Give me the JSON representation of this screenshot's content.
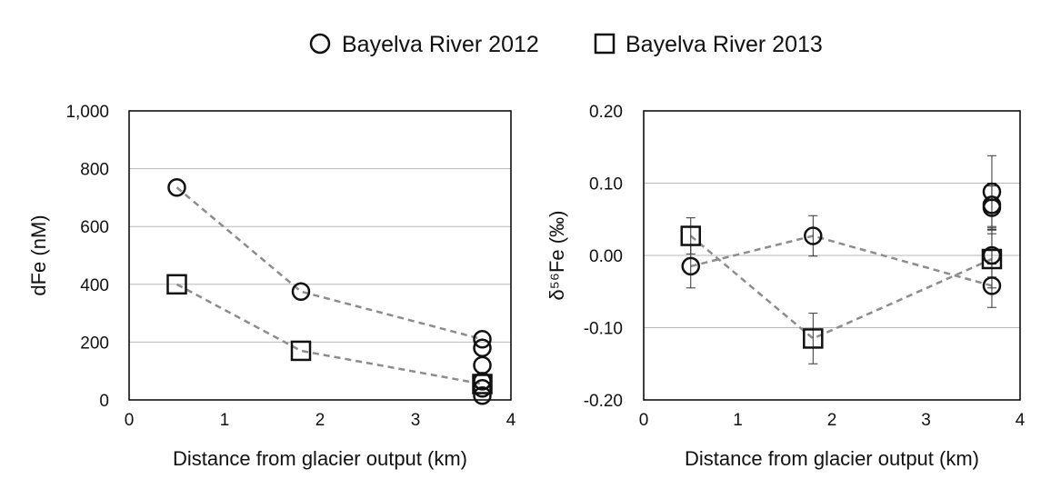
{
  "legend": {
    "entries": [
      {
        "label": "Bayelva River 2012",
        "marker": "circle"
      },
      {
        "label": "Bayelva River 2013",
        "marker": "square"
      }
    ],
    "placement": "top-center"
  },
  "colors": {
    "marker_stroke": "#111111",
    "connector": "#8c8c8c",
    "grid": "#b8b8b8",
    "frame": "#000000",
    "background": "#ffffff"
  },
  "chart_data": [
    {
      "type": "scatter",
      "xlabel": "Distance from glacier output (km)",
      "ylabel": "dFe (nM)",
      "xlim": [
        0,
        4
      ],
      "ylim": [
        0,
        1000
      ],
      "xticks": [
        0,
        1,
        2,
        3,
        4
      ],
      "xtick_labels": [
        "0",
        "1",
        "2",
        "3",
        "4"
      ],
      "yticks": [
        0,
        200,
        400,
        600,
        800,
        1000
      ],
      "ytick_labels": [
        "0",
        "200",
        "400",
        "600",
        "800",
        "1,000"
      ],
      "grid": "horizontal",
      "series": [
        {
          "name": "Bayelva River 2012",
          "marker": "circle",
          "points": [
            {
              "x": 0.5,
              "y": 735
            },
            {
              "x": 1.8,
              "y": 375
            },
            {
              "x": 3.7,
              "y": 210
            },
            {
              "x": 3.7,
              "y": 180
            },
            {
              "x": 3.7,
              "y": 120
            },
            {
              "x": 3.7,
              "y": 65
            },
            {
              "x": 3.7,
              "y": 40
            },
            {
              "x": 3.7,
              "y": 15
            }
          ],
          "connector": [
            [
              0.5,
              735
            ],
            [
              1.8,
              375
            ],
            [
              3.7,
              210
            ]
          ]
        },
        {
          "name": "Bayelva River 2013",
          "marker": "square",
          "points": [
            {
              "x": 0.5,
              "y": 400
            },
            {
              "x": 1.8,
              "y": 170
            },
            {
              "x": 3.7,
              "y": 55
            }
          ],
          "connector": [
            [
              0.5,
              400
            ],
            [
              1.8,
              170
            ],
            [
              3.7,
              55
            ]
          ]
        }
      ]
    },
    {
      "type": "scatter",
      "xlabel": "Distance from glacier output (km)",
      "ylabel": "δ⁵⁶Fe (‰)",
      "xlim": [
        0,
        4
      ],
      "ylim": [
        -0.2,
        0.2
      ],
      "xticks": [
        0,
        1,
        2,
        3,
        4
      ],
      "xtick_labels": [
        "0",
        "1",
        "2",
        "3",
        "4"
      ],
      "yticks": [
        -0.2,
        -0.1,
        0.0,
        0.1,
        0.2
      ],
      "ytick_labels": [
        "-0.20",
        "-0.10",
        "0.00",
        "0.10",
        "0.20"
      ],
      "grid": "horizontal",
      "error_bars": true,
      "series": [
        {
          "name": "Bayelva River 2012",
          "marker": "circle",
          "points": [
            {
              "x": 0.5,
              "y": -0.015,
              "err": 0.03
            },
            {
              "x": 1.8,
              "y": 0.027,
              "err": 0.028
            },
            {
              "x": 3.7,
              "y": 0.088,
              "err": 0.05
            },
            {
              "x": 3.7,
              "y": 0.07,
              "err": 0.03
            },
            {
              "x": 3.7,
              "y": 0.066,
              "err": 0.03
            },
            {
              "x": 3.7,
              "y": 0.0,
              "err": 0.03
            },
            {
              "x": 3.7,
              "y": -0.042,
              "err": 0.03
            }
          ],
          "connector": [
            [
              0.5,
              -0.015
            ],
            [
              1.8,
              0.027
            ],
            [
              3.7,
              -0.042
            ]
          ]
        },
        {
          "name": "Bayelva River 2013",
          "marker": "square",
          "points": [
            {
              "x": 0.5,
              "y": 0.027,
              "err": 0.025
            },
            {
              "x": 1.8,
              "y": -0.115,
              "err": 0.035
            },
            {
              "x": 3.7,
              "y": -0.005,
              "err": 0.04
            }
          ],
          "connector": [
            [
              0.5,
              0.027
            ],
            [
              1.8,
              -0.115
            ],
            [
              3.7,
              -0.005
            ]
          ]
        }
      ]
    }
  ]
}
